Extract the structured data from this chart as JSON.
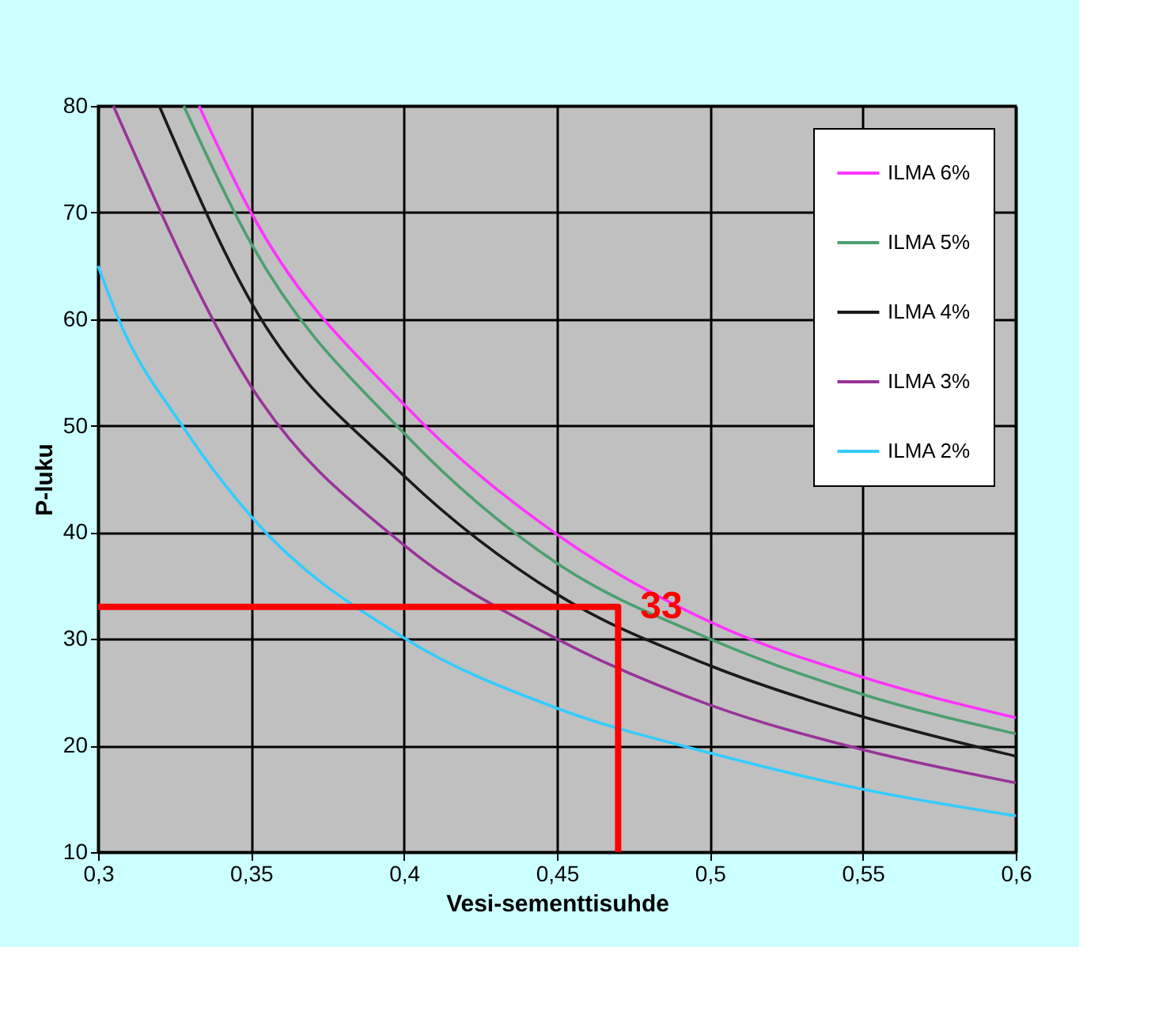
{
  "chart_data": {
    "type": "line",
    "xlabel": "Vesi-sementtisuhde",
    "ylabel": "P-luku",
    "xlim": [
      0.3,
      0.6
    ],
    "xticks": [
      {
        "value": 0.3,
        "label": "0,3"
      },
      {
        "value": 0.35,
        "label": "0,35"
      },
      {
        "value": 0.4,
        "label": "0,4"
      },
      {
        "value": 0.45,
        "label": "0,45"
      },
      {
        "value": 0.5,
        "label": "0,5"
      },
      {
        "value": 0.55,
        "label": "0,55"
      },
      {
        "value": 0.6,
        "label": "0,6"
      }
    ],
    "ylim": [
      10,
      80
    ],
    "yticks": [
      10,
      20,
      30,
      40,
      50,
      60,
      70,
      80
    ],
    "grid": true,
    "legend": "top right",
    "marker": "none",
    "line_style": "solid",
    "series": [
      {
        "name": "ILMA 6%",
        "color": "#ff33ff",
        "x": [
          0.333,
          0.35,
          0.4,
          0.45,
          0.5,
          0.55,
          0.6
        ],
        "values": [
          80,
          70,
          52,
          39.8,
          31.6,
          26.4,
          22.6
        ]
      },
      {
        "name": "ILMA 5%",
        "color": "#4c9f70",
        "x": [
          0.328,
          0.35,
          0.4,
          0.45,
          0.5,
          0.55,
          0.6
        ],
        "values": [
          80,
          67.1,
          49.3,
          37.1,
          30,
          24.8,
          21.1
        ]
      },
      {
        "name": "ILMA 4%",
        "color": "#1a1a1a",
        "x": [
          0.32,
          0.35,
          0.4,
          0.45,
          0.5,
          0.55,
          0.6
        ],
        "values": [
          80,
          61.6,
          45.3,
          34.2,
          27.5,
          22.7,
          19
        ]
      },
      {
        "name": "ILMA 3%",
        "color": "#993399",
        "x": [
          0.305,
          0.35,
          0.4,
          0.45,
          0.5,
          0.55,
          0.6
        ],
        "values": [
          80,
          53.7,
          38.8,
          30,
          23.8,
          19.6,
          16.5
        ]
      },
      {
        "name": "ILMA 2%",
        "color": "#33ccff",
        "x": [
          0.3,
          0.3067,
          0.3275,
          0.35,
          0.4,
          0.45,
          0.5,
          0.55,
          0.6
        ],
        "values": [
          65,
          60,
          50,
          41.5,
          30.1,
          23.5,
          19.3,
          15.9,
          13.4
        ]
      },
      {
        "color": "#ff0000",
        "x": [
          0.3,
          0.47,
          0.47
        ],
        "values": [
          33,
          33,
          10
        ]
      }
    ],
    "annotations": [
      {
        "text": "33",
        "x": 0.47,
        "y": 33
      }
    ]
  }
}
